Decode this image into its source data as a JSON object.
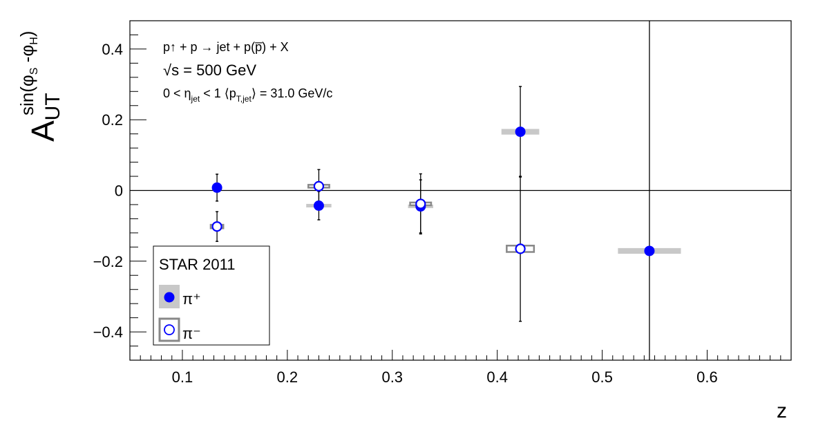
{
  "chart_data": {
    "type": "scatter",
    "xlabel": "z",
    "ylabel": "A",
    "ylabel_sub": "UT",
    "ylabel_sup_parts": [
      "sin(φ",
      "S",
      " -φ",
      "H",
      ")"
    ],
    "xlim": [
      0.05,
      0.68
    ],
    "ylim": [
      -0.48,
      0.48
    ],
    "x_ticks": [
      0.1,
      0.2,
      0.3,
      0.4,
      0.5,
      0.6
    ],
    "x_tick_labels": [
      "0.1",
      "0.2",
      "0.3",
      "0.4",
      "0.5",
      "0.6"
    ],
    "y_ticks": [
      -0.4,
      -0.2,
      0,
      0.2,
      0.4
    ],
    "y_tick_labels": [
      "−0.4",
      "−0.2",
      "0",
      "0.2",
      "0.4"
    ],
    "zero_line": true,
    "annotations": {
      "reaction": "p↑ + p → jet + p(p̅) + X",
      "energy": "√s = 500 GeV",
      "kinematics_parts": [
        "0 < η",
        "jet",
        " < 1 ⟨p",
        "T,jet",
        "⟩ = 31.0 GeV/c"
      ]
    },
    "legend": {
      "title": "STAR 2011",
      "placement": "bottom-left",
      "entries": [
        "π⁺",
        "π⁻"
      ]
    },
    "series": [
      {
        "marker": "filled-circle",
        "color": "#0000ff",
        "syst_color": "#c8c8c8",
        "points": [
          {
            "x": 0.133,
            "y": 0.008,
            "err": 0.038,
            "sys_dx": 0.0,
            "sys_dy": 0.0
          },
          {
            "x": 0.23,
            "y": -0.043,
            "err": 0.04,
            "sys_dx": 0.012,
            "sys_dy": 0.005
          },
          {
            "x": 0.327,
            "y": -0.045,
            "err": 0.075,
            "sys_dx": 0.012,
            "sys_dy": 0.005
          },
          {
            "x": 0.422,
            "y": 0.166,
            "err": 0.128,
            "sys_dx": 0.018,
            "sys_dy": 0.008
          },
          {
            "x": 0.545,
            "y": -0.171,
            "err": 1.0,
            "sys_dx": 0.03,
            "sys_dy": 0.008
          }
        ]
      },
      {
        "marker": "open-circle",
        "color": "#0000ff",
        "syst_color": "#888888",
        "points": [
          {
            "x": 0.133,
            "y": -0.102,
            "err": 0.042,
            "sys_dx": 0.006,
            "sys_dy": 0.005
          },
          {
            "x": 0.23,
            "y": 0.012,
            "err": 0.047,
            "sys_dx": 0.01,
            "sys_dy": 0.004
          },
          {
            "x": 0.327,
            "y": -0.038,
            "err": 0.085,
            "sys_dx": 0.01,
            "sys_dy": 0.004
          },
          {
            "x": 0.422,
            "y": -0.165,
            "err": 0.205,
            "sys_dx": 0.013,
            "sys_dy": 0.009
          }
        ]
      }
    ]
  }
}
